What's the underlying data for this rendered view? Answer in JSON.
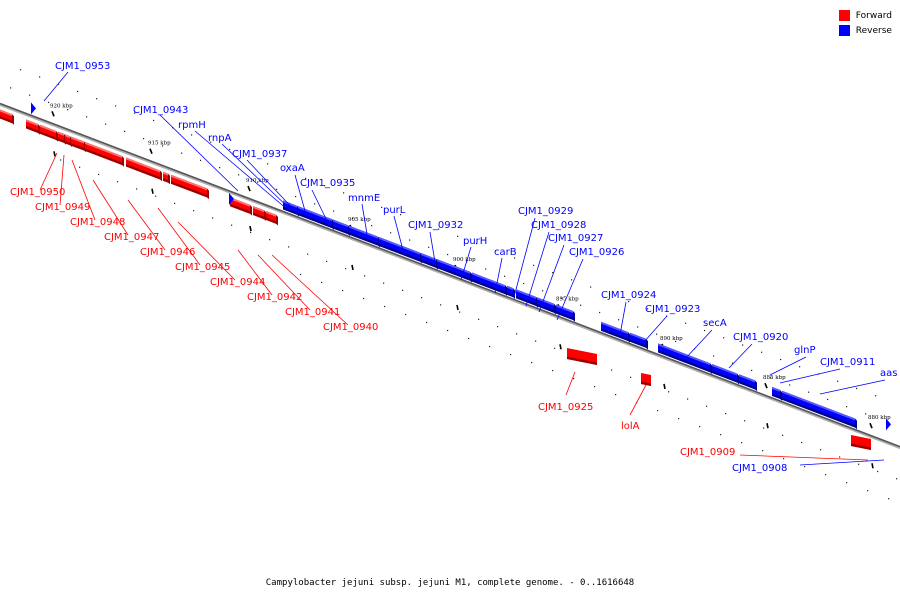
{
  "legend": {
    "forward": {
      "label": "Forward",
      "color": "#ff0000"
    },
    "reverse": {
      "label": "Reverse",
      "color": "#0000ff"
    }
  },
  "caption": "Campylobacter jejuni subsp. jejuni M1, complete genome. - 0..1616648",
  "axis": {
    "ticks": [
      "920 kbp",
      "915 kbp",
      "910 kbp",
      "905 kbp",
      "900 kbp",
      "895 kbp",
      "890 kbp",
      "885 kbp",
      "880 kbp"
    ]
  },
  "genes": [
    {
      "name": "CJM1_0953",
      "strand": "reverse"
    },
    {
      "name": "CJM1_0943",
      "strand": "reverse"
    },
    {
      "name": "rpmH",
      "strand": "reverse"
    },
    {
      "name": "rnpA",
      "strand": "reverse"
    },
    {
      "name": "CJM1_0937",
      "strand": "reverse"
    },
    {
      "name": "oxaA",
      "strand": "reverse"
    },
    {
      "name": "CJM1_0935",
      "strand": "reverse"
    },
    {
      "name": "mnmE",
      "strand": "reverse"
    },
    {
      "name": "purL",
      "strand": "reverse"
    },
    {
      "name": "CJM1_0932",
      "strand": "reverse"
    },
    {
      "name": "purH",
      "strand": "reverse"
    },
    {
      "name": "carB",
      "strand": "reverse"
    },
    {
      "name": "CJM1_0929",
      "strand": "reverse"
    },
    {
      "name": "CJM1_0928",
      "strand": "reverse"
    },
    {
      "name": "CJM1_0927",
      "strand": "reverse"
    },
    {
      "name": "CJM1_0926",
      "strand": "reverse"
    },
    {
      "name": "CJM1_0924",
      "strand": "reverse"
    },
    {
      "name": "CJM1_0923",
      "strand": "reverse"
    },
    {
      "name": "secA",
      "strand": "reverse"
    },
    {
      "name": "CJM1_0920",
      "strand": "reverse"
    },
    {
      "name": "glnP",
      "strand": "reverse"
    },
    {
      "name": "CJM1_0911",
      "strand": "reverse"
    },
    {
      "name": "aas",
      "strand": "reverse"
    },
    {
      "name": "CJM1_0908",
      "strand": "reverse"
    },
    {
      "name": "CJM1_0950",
      "strand": "forward"
    },
    {
      "name": "CJM1_0949",
      "strand": "forward"
    },
    {
      "name": "CJM1_0948",
      "strand": "forward"
    },
    {
      "name": "CJM1_0947",
      "strand": "forward"
    },
    {
      "name": "CJM1_0946",
      "strand": "forward"
    },
    {
      "name": "CJM1_0945",
      "strand": "forward"
    },
    {
      "name": "CJM1_0944",
      "strand": "forward"
    },
    {
      "name": "CJM1_0942",
      "strand": "forward"
    },
    {
      "name": "CJM1_0941",
      "strand": "forward"
    },
    {
      "name": "CJM1_0940",
      "strand": "forward"
    },
    {
      "name": "CJM1_0925",
      "strand": "forward"
    },
    {
      "name": "lolA",
      "strand": "forward"
    },
    {
      "name": "CJM1_0909",
      "strand": "forward"
    }
  ]
}
